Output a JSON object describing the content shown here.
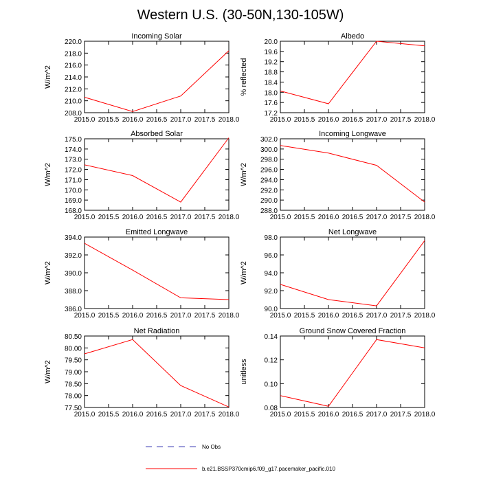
{
  "figure": {
    "title": "Western U.S. (30-50N,130-105W)",
    "legend": [
      {
        "label": "No Obs",
        "style": "dashed",
        "color": "#3b3bb5"
      },
      {
        "label": "b.e21.BSSP370cmip6.f09_g17.pacemaker_pacific.010",
        "style": "solid",
        "color": "#ff0000"
      }
    ]
  },
  "chart_data": [
    {
      "type": "line",
      "title": "Incoming Solar",
      "xlabel": "",
      "ylabel": "W/m^2",
      "x": [
        2015,
        2016,
        2017,
        2018
      ],
      "values": [
        210.6,
        208.2,
        210.8,
        218.4
      ],
      "xlim": [
        2015,
        2018
      ],
      "ylim": [
        208,
        220
      ],
      "xticks": [
        "2015.0",
        "2015.5",
        "2016.0",
        "2016.5",
        "2017.0",
        "2017.5",
        "2018.0"
      ],
      "yticks": [
        "208.0",
        "210.0",
        "212.0",
        "214.0",
        "216.0",
        "218.0",
        "220.0"
      ],
      "color": "#ff0000",
      "grid": false
    },
    {
      "type": "line",
      "title": "Albedo",
      "xlabel": "",
      "ylabel": "% reflected",
      "x": [
        2015,
        2016,
        2017,
        2018
      ],
      "values": [
        18.05,
        17.55,
        20.0,
        19.82
      ],
      "xlim": [
        2015,
        2018
      ],
      "ylim": [
        17.2,
        20.0
      ],
      "xticks": [
        "2015.0",
        "2015.5",
        "2016.0",
        "2016.5",
        "2017.0",
        "2017.5",
        "2018.0"
      ],
      "yticks": [
        "17.2",
        "17.6",
        "18.0",
        "18.4",
        "18.8",
        "19.2",
        "19.6",
        "20.0"
      ],
      "color": "#ff0000",
      "grid": false
    },
    {
      "type": "line",
      "title": "Absorbed Solar",
      "xlabel": "",
      "ylabel": "W/m^2",
      "x": [
        2015,
        2016,
        2017,
        2018
      ],
      "values": [
        172.45,
        171.4,
        168.8,
        175.1
      ],
      "xlim": [
        2015,
        2018
      ],
      "ylim": [
        168,
        175
      ],
      "xticks": [
        "2015.0",
        "2015.5",
        "2016.0",
        "2016.5",
        "2017.0",
        "2017.5",
        "2018.0"
      ],
      "yticks": [
        "168.0",
        "169.0",
        "170.0",
        "171.0",
        "172.0",
        "173.0",
        "174.0",
        "175.0"
      ],
      "color": "#ff0000",
      "grid": false
    },
    {
      "type": "line",
      "title": "Incoming Longwave",
      "xlabel": "",
      "ylabel": "W/m^2",
      "x": [
        2015,
        2016,
        2017,
        2018
      ],
      "values": [
        300.7,
        299.2,
        296.8,
        289.6
      ],
      "xlim": [
        2015,
        2018
      ],
      "ylim": [
        288,
        302
      ],
      "xticks": [
        "2015.0",
        "2015.5",
        "2016.0",
        "2016.5",
        "2017.0",
        "2017.5",
        "2018.0"
      ],
      "yticks": [
        "288.0",
        "290.0",
        "292.0",
        "294.0",
        "296.0",
        "298.0",
        "300.0",
        "302.0"
      ],
      "color": "#ff0000",
      "grid": false
    },
    {
      "type": "line",
      "title": "Emitted Longwave",
      "xlabel": "",
      "ylabel": "W/m^2",
      "x": [
        2015,
        2016,
        2017,
        2018
      ],
      "values": [
        393.3,
        390.3,
        387.2,
        387.0
      ],
      "xlim": [
        2015,
        2018
      ],
      "ylim": [
        386,
        394
      ],
      "xticks": [
        "2015.0",
        "2015.5",
        "2016.0",
        "2016.5",
        "2017.0",
        "2017.5",
        "2018.0"
      ],
      "yticks": [
        "386.0",
        "388.0",
        "390.0",
        "392.0",
        "394.0"
      ],
      "color": "#ff0000",
      "grid": false
    },
    {
      "type": "line",
      "title": "Net Longwave",
      "xlabel": "",
      "ylabel": "W/m^2",
      "x": [
        2015,
        2016,
        2017,
        2018
      ],
      "values": [
        92.7,
        91.0,
        90.3,
        97.6
      ],
      "xlim": [
        2015,
        2018
      ],
      "ylim": [
        90,
        98
      ],
      "xticks": [
        "2015.0",
        "2015.5",
        "2016.0",
        "2016.5",
        "2017.0",
        "2017.5",
        "2018.0"
      ],
      "yticks": [
        "90.0",
        "92.0",
        "94.0",
        "96.0",
        "98.0"
      ],
      "color": "#ff0000",
      "grid": false
    },
    {
      "type": "line",
      "title": "Net Radiation",
      "xlabel": "",
      "ylabel": "W/m^2",
      "x": [
        2015,
        2016,
        2017,
        2018
      ],
      "values": [
        79.75,
        80.35,
        78.42,
        77.52
      ],
      "xlim": [
        2015,
        2018
      ],
      "ylim": [
        77.5,
        80.5
      ],
      "xticks": [
        "2015.0",
        "2015.5",
        "2016.0",
        "2016.5",
        "2017.0",
        "2017.5",
        "2018.0"
      ],
      "yticks": [
        "77.50",
        "78.00",
        "78.50",
        "79.00",
        "79.50",
        "80.00",
        "80.50"
      ],
      "color": "#ff0000",
      "grid": false
    },
    {
      "type": "line",
      "title": "Ground Snow Covered Fraction",
      "xlabel": "",
      "ylabel": "unitless",
      "x": [
        2015,
        2016,
        2017,
        2018
      ],
      "values": [
        0.09,
        0.081,
        0.137,
        0.13
      ],
      "xlim": [
        2015,
        2018
      ],
      "ylim": [
        0.08,
        0.14
      ],
      "xticks": [
        "2015.0",
        "2015.5",
        "2016.0",
        "2016.5",
        "2017.0",
        "2017.5",
        "2018.0"
      ],
      "yticks": [
        "0.08",
        "0.10",
        "0.12",
        "0.14"
      ],
      "color": "#ff0000",
      "grid": false
    }
  ]
}
